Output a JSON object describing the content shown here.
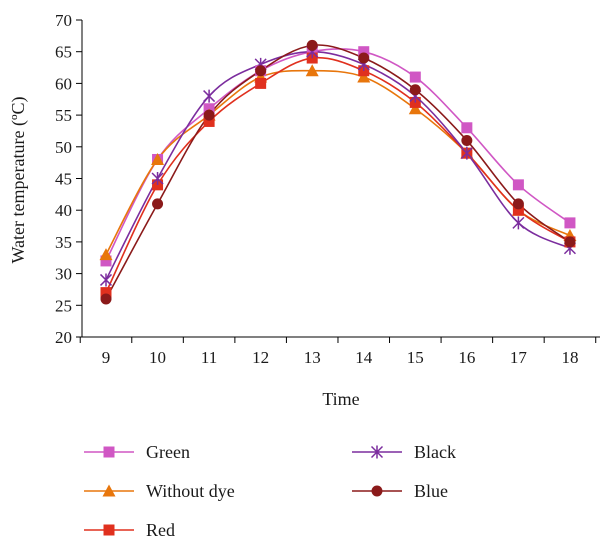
{
  "chart_data": {
    "type": "line",
    "xlabel": "Time",
    "ylabel": "Water temperature (ºC)",
    "x": [
      9,
      10,
      11,
      12,
      13,
      14,
      15,
      16,
      17,
      18
    ],
    "ylim": [
      20,
      70
    ],
    "yticks": [
      20,
      25,
      30,
      35,
      40,
      45,
      50,
      55,
      60,
      65,
      70
    ],
    "grid": false,
    "legend_position": "bottom",
    "series": [
      {
        "name": "Green",
        "color": "#d057c4",
        "marker": "square",
        "values": [
          32,
          48,
          56,
          62,
          65,
          65,
          61,
          53,
          44,
          38
        ]
      },
      {
        "name": "Without dye",
        "color": "#e8760c",
        "marker": "triangle",
        "values": [
          33,
          48,
          55,
          61,
          62,
          61,
          56,
          49,
          40,
          36
        ]
      },
      {
        "name": "Red",
        "color": "#e0301e",
        "marker": "square",
        "values": [
          27,
          44,
          54,
          60,
          64,
          62,
          57,
          49,
          40,
          35
        ]
      },
      {
        "name": "Black",
        "color": "#7b2d9e",
        "marker": "star",
        "values": [
          29,
          45,
          58,
          63,
          65,
          63,
          58,
          49,
          38,
          34
        ]
      },
      {
        "name": "Blue",
        "color": "#8b1a1a",
        "marker": "circle",
        "values": [
          26,
          41,
          55,
          62,
          66,
          64,
          59,
          51,
          41,
          35
        ]
      }
    ]
  }
}
